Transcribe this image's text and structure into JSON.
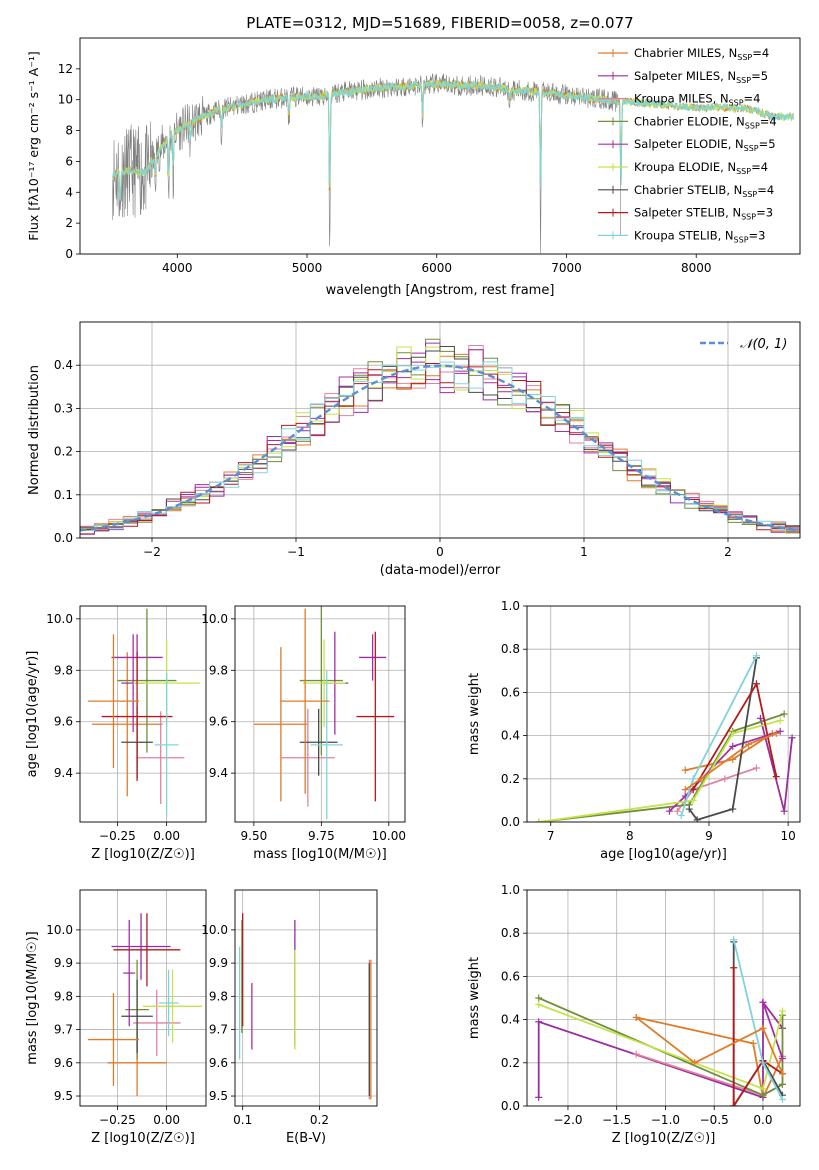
{
  "colors": [
    "#e07b28",
    "#9b2ca2",
    "#e0829f",
    "#6f8f3a",
    "#a72fa8",
    "#c4e34a",
    "#4a4a4a",
    "#b31b1b",
    "#7fd4dc"
  ],
  "legend": [
    {
      "main": "Chabrier MILES, N",
      "sub": "SSP",
      "tail": "=4",
      "color": "#e07b28"
    },
    {
      "main": "Salpeter MILES, N",
      "sub": "SSP",
      "tail": "=5",
      "color": "#9b2ca2"
    },
    {
      "main": "Kroupa MILES, N",
      "sub": "SSP",
      "tail": "=4",
      "color": "#e0829f"
    },
    {
      "main": "Chabrier ELODIE, N",
      "sub": "SSP",
      "tail": "=4",
      "color": "#6f8f3a"
    },
    {
      "main": "Salpeter ELODIE, N",
      "sub": "SSP",
      "tail": "=5",
      "color": "#a72fa8"
    },
    {
      "main": "Kroupa ELODIE, N",
      "sub": "SSP",
      "tail": "=4",
      "color": "#c4e34a"
    },
    {
      "main": "Chabrier STELIB, N",
      "sub": "SSP",
      "tail": "=4",
      "color": "#4a4a4a"
    },
    {
      "main": "Salpeter STELIB, N",
      "sub": "SSP",
      "tail": "=3",
      "color": "#b31b1b"
    },
    {
      "main": "Kroupa STELIB, N",
      "sub": "SSP",
      "tail": "=3",
      "color": "#7fd4dc"
    }
  ],
  "chart_data": [
    {
      "id": "spectrum",
      "type": "line",
      "title": "PLATE=0312, MJD=51689, FIBERID=0058, z=0.077",
      "xlabel": "wavelength [Angstrom, rest frame]",
      "ylabel": "Flux [fλ10⁻¹⁷ erg cm⁻² s⁻¹ A⁻¹]",
      "xlim": [
        3250,
        8800
      ],
      "ylim": [
        0,
        14
      ],
      "xticks": [
        4000,
        5000,
        6000,
        7000,
        8000
      ],
      "yticks": [
        0,
        2,
        4,
        6,
        8,
        10,
        12
      ],
      "grid": false,
      "legend_position": "right",
      "continuum": [
        [
          3500,
          5.2
        ],
        [
          3650,
          5.4
        ],
        [
          3750,
          5.2
        ],
        [
          3850,
          6.6
        ],
        [
          3950,
          7.8
        ],
        [
          4050,
          8.2
        ],
        [
          4150,
          8.7
        ],
        [
          4300,
          9.3
        ],
        [
          4500,
          9.7
        ],
        [
          4700,
          10.0
        ],
        [
          4900,
          10.2
        ],
        [
          5100,
          10.2
        ],
        [
          5200,
          10.4
        ],
        [
          5400,
          10.6
        ],
        [
          5600,
          10.8
        ],
        [
          5800,
          10.9
        ],
        [
          6000,
          11.0
        ],
        [
          6200,
          10.9
        ],
        [
          6400,
          10.9
        ],
        [
          6600,
          10.6
        ],
        [
          6800,
          10.5
        ],
        [
          7000,
          10.3
        ],
        [
          7200,
          10.1
        ],
        [
          7400,
          9.9
        ],
        [
          7600,
          9.8
        ],
        [
          7800,
          9.6
        ],
        [
          8000,
          9.5
        ],
        [
          8200,
          9.5
        ],
        [
          8400,
          9.4
        ],
        [
          8600,
          8.9
        ]
      ],
      "absorption": [
        [
          3560,
          3.0
        ],
        [
          3830,
          2.0
        ],
        [
          3933,
          4.5
        ],
        [
          3968,
          4.0
        ],
        [
          4101,
          1.5
        ],
        [
          4340,
          1.8
        ],
        [
          4861,
          2.0
        ],
        [
          5175,
          10.0
        ],
        [
          5890,
          3.0
        ],
        [
          6563,
          1.0
        ],
        [
          6800,
          10.0
        ],
        [
          7420,
          9.0
        ]
      ]
    },
    {
      "id": "residual-histogram",
      "type": "histogram",
      "xlabel": "(data-model)/error",
      "ylabel": "Normed distribution",
      "xlim": [
        -2.5,
        2.5
      ],
      "ylim": [
        0,
        0.5
      ],
      "xticks": [
        -2,
        -1,
        0,
        1,
        2
      ],
      "yticks": [
        0.0,
        0.1,
        0.2,
        0.3,
        0.4
      ],
      "grid": true,
      "legend": "𝒩(0, 1)",
      "legend_position": "top-right",
      "bin_width": 0.1
    },
    {
      "id": "age-vs-Z",
      "type": "errorbar",
      "xlabel": "Z [log10(Z/Z☉)]",
      "ylabel": "age [log10(age/yr)]",
      "xlim": [
        -0.44,
        0.2
      ],
      "ylim": [
        9.21,
        10.05
      ],
      "xticks": [
        -0.25,
        0.0
      ],
      "yticks": [
        9.4,
        9.6,
        9.8,
        10.0
      ],
      "grid": true,
      "points": [
        [
          -0.2,
          9.59,
          0.18,
          0.28
        ],
        [
          -0.15,
          9.85,
          0.13,
          0.09
        ],
        [
          -0.03,
          9.46,
          0.12,
          0.18
        ],
        [
          -0.1,
          9.76,
          0.15,
          0.28
        ],
        [
          -0.17,
          9.75,
          0.06,
          0.19
        ],
        [
          0.0,
          9.75,
          0.17,
          0.17
        ],
        [
          -0.15,
          9.52,
          0.08,
          0.14
        ],
        [
          -0.15,
          9.62,
          0.18,
          0.25
        ],
        [
          0.0,
          9.51,
          0.06,
          0.28
        ],
        [
          -0.27,
          9.68,
          0.13,
          0.26
        ]
      ]
    },
    {
      "id": "age-vs-mass",
      "type": "errorbar",
      "xlabel": "mass [log10(M/M☉)]",
      "ylabel": "",
      "xlim": [
        9.43,
        10.06
      ],
      "ylim": [
        9.21,
        10.05
      ],
      "xticks": [
        9.5,
        9.75,
        10.0
      ],
      "yticks": [
        9.4,
        9.6,
        9.8,
        10.0
      ],
      "grid": true,
      "points": [
        [
          9.6,
          9.59,
          0.1,
          0.3
        ],
        [
          9.94,
          9.85,
          0.05,
          0.09
        ],
        [
          9.7,
          9.46,
          0.1,
          0.19
        ],
        [
          9.75,
          9.76,
          0.08,
          0.29
        ],
        [
          9.8,
          9.75,
          0.05,
          0.2
        ],
        [
          9.76,
          9.75,
          0.08,
          0.17
        ],
        [
          9.74,
          9.52,
          0.07,
          0.13
        ],
        [
          9.95,
          9.62,
          0.07,
          0.33
        ],
        [
          9.77,
          9.51,
          0.06,
          0.29
        ],
        [
          9.69,
          9.68,
          0.09,
          0.36
        ]
      ]
    },
    {
      "id": "weight-vs-age",
      "type": "line",
      "xlabel": "age [log10(age/yr)]",
      "ylabel": "mass weight",
      "xlim": [
        6.7,
        10.15
      ],
      "ylim": [
        0,
        1
      ],
      "xticks": [
        7,
        8,
        9,
        10
      ],
      "yticks": [
        0.0,
        0.2,
        0.4,
        0.6,
        0.8,
        1.0
      ],
      "grid": true,
      "series": [
        {
          "points": [
            [
              8.7,
              0.24
            ],
            [
              9.3,
              0.29
            ],
            [
              9.8,
              0.41
            ]
          ]
        },
        {
          "points": [
            [
              9.65,
              0.48
            ],
            [
              9.95,
              0.05
            ],
            [
              10.05,
              0.39
            ]
          ]
        },
        {
          "points": [
            [
              8.6,
              0.05
            ],
            [
              8.8,
              0.15
            ],
            [
              9.2,
              0.2
            ],
            [
              9.6,
              0.25
            ]
          ]
        },
        {
          "points": [
            [
              6.85,
              0.0
            ],
            [
              8.75,
              0.08
            ],
            [
              9.3,
              0.42
            ],
            [
              9.95,
              0.5
            ]
          ]
        },
        {
          "points": [
            [
              8.5,
              0.05
            ],
            [
              8.7,
              0.12
            ],
            [
              9.3,
              0.35
            ],
            [
              9.9,
              0.42
            ]
          ]
        },
        {
          "points": [
            [
              6.85,
              0.0
            ],
            [
              8.8,
              0.1
            ],
            [
              9.3,
              0.41
            ],
            [
              9.9,
              0.47
            ]
          ]
        },
        {
          "points": [
            [
              8.75,
              0.06
            ],
            [
              8.85,
              0.01
            ],
            [
              9.3,
              0.06
            ],
            [
              9.6,
              0.76
            ]
          ]
        },
        {
          "points": [
            [
              8.8,
              0.15
            ],
            [
              9.6,
              0.64
            ],
            [
              9.85,
              0.21
            ]
          ]
        },
        {
          "points": [
            [
              8.65,
              0.03
            ],
            [
              8.8,
              0.2
            ],
            [
              9.6,
              0.77
            ]
          ]
        },
        {
          "points": [
            [
              8.7,
              0.15
            ],
            [
              8.9,
              0.2
            ],
            [
              9.5,
              0.36
            ],
            [
              9.85,
              0.41
            ]
          ]
        }
      ]
    },
    {
      "id": "mass-vs-Z",
      "type": "errorbar",
      "xlabel": "Z [log10(Z/Z☉)]",
      "ylabel": "mass [log10(M/M☉)]",
      "xlim": [
        -0.44,
        0.2
      ],
      "ylim": [
        9.47,
        10.12
      ],
      "xticks": [
        -0.25,
        0.0
      ],
      "yticks": [
        9.5,
        9.6,
        9.7,
        9.8,
        9.9,
        10.0
      ],
      "grid": true,
      "points": [
        [
          -0.15,
          9.6,
          0.15,
          0.1
        ],
        [
          -0.13,
          9.95,
          0.15,
          0.1
        ],
        [
          -0.05,
          9.72,
          0.12,
          0.1
        ],
        [
          -0.15,
          9.76,
          0.06,
          0.15
        ],
        [
          -0.19,
          9.87,
          0.03,
          0.16
        ],
        [
          0.03,
          9.77,
          0.15,
          0.11
        ],
        [
          -0.15,
          9.74,
          0.08,
          0.11
        ],
        [
          -0.1,
          9.94,
          0.17,
          0.11
        ],
        [
          0.01,
          9.78,
          0.05,
          0.1
        ],
        [
          -0.27,
          9.67,
          0.13,
          0.14
        ]
      ]
    },
    {
      "id": "mass-vs-ebv",
      "type": "errorbar",
      "xlabel": "E(B-V)",
      "ylabel": "",
      "xlim": [
        0.09,
        0.275
      ],
      "ylim": [
        9.47,
        10.12
      ],
      "xticks": [
        0.1,
        0.2
      ],
      "yticks": [
        9.5,
        9.6,
        9.7,
        9.8,
        9.9,
        10.0
      ],
      "grid": true,
      "points": [
        [
          0.265,
          9.71,
          0.0,
          0.18
        ],
        [
          0.168,
          9.84,
          0.0,
          0.19
        ],
        [
          0.265,
          9.7,
          0.0,
          0.21
        ],
        [
          0.099,
          9.86,
          0.0,
          0.17
        ],
        [
          0.112,
          9.74,
          0.0,
          0.1
        ],
        [
          0.168,
          9.79,
          0.0,
          0.15
        ],
        [
          0.265,
          9.7,
          0.0,
          0.2
        ],
        [
          0.1,
          9.88,
          0.0,
          0.17
        ],
        [
          0.096,
          9.78,
          0.0,
          0.17
        ],
        [
          0.267,
          9.7,
          0.0,
          0.21
        ]
      ]
    },
    {
      "id": "weight-vs-Z",
      "type": "line",
      "xlabel": "Z [log10(Z/Z☉)]",
      "ylabel": "mass weight",
      "xlim": [
        -2.42,
        0.38
      ],
      "ylim": [
        0,
        1
      ],
      "xticks": [
        -2.0,
        -1.5,
        -1.0,
        -0.5,
        0.0
      ],
      "yticks": [
        0.0,
        0.2,
        0.4,
        0.6,
        0.8,
        1.0
      ],
      "grid": true,
      "series": [
        {
          "points": [
            [
              -1.3,
              0.41
            ],
            [
              -0.1,
              0.29
            ],
            [
              0.0,
              0.04
            ],
            [
              0.2,
              0.23
            ]
          ]
        },
        {
          "points": [
            [
              -2.3,
              0.04
            ],
            [
              -2.3,
              0.39
            ],
            [
              0.0,
              0.04
            ],
            [
              0.0,
              0.48
            ],
            [
              0.2,
              0.36
            ]
          ]
        },
        {
          "points": [
            [
              -1.3,
              0.24
            ],
            [
              0.0,
              0.05
            ],
            [
              0.2,
              0.1
            ]
          ]
        },
        {
          "points": [
            [
              -2.3,
              0.5
            ],
            [
              0.0,
              0.05
            ],
            [
              0.2,
              0.1
            ],
            [
              0.2,
              0.42
            ]
          ]
        },
        {
          "points": [
            [
              0.0,
              0.48
            ],
            [
              0.2,
              0.22
            ]
          ]
        },
        {
          "points": [
            [
              -2.3,
              0.47
            ],
            [
              0.0,
              0.08
            ],
            [
              0.2,
              0.44
            ]
          ]
        },
        {
          "points": [
            [
              -0.3,
              0.76
            ],
            [
              -0.3,
              0.0
            ],
            [
              0.0,
              0.21
            ],
            [
              0.2,
              0.05
            ]
          ]
        },
        {
          "points": [
            [
              -0.3,
              0.64
            ],
            [
              -0.3,
              0.0
            ],
            [
              0.0,
              0.21
            ],
            [
              0.2,
              0.15
            ]
          ]
        },
        {
          "points": [
            [
              -0.3,
              0.77
            ],
            [
              0.0,
              0.2
            ],
            [
              0.2,
              0.03
            ]
          ]
        },
        {
          "points": [
            [
              -1.3,
              0.41
            ],
            [
              -0.7,
              0.2
            ],
            [
              0.0,
              0.36
            ],
            [
              0.2,
              0.15
            ]
          ]
        }
      ]
    }
  ]
}
